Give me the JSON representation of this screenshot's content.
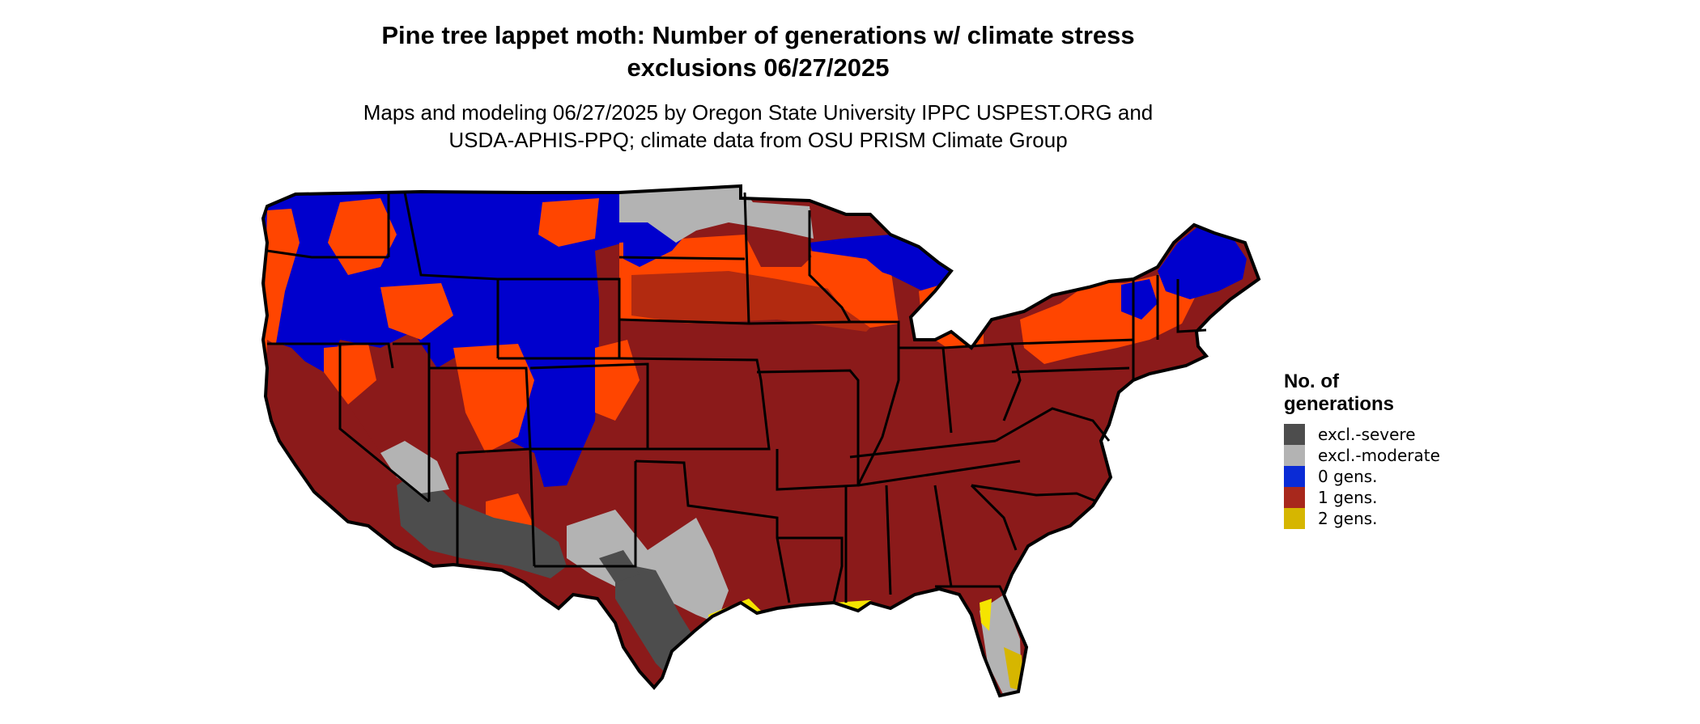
{
  "header": {
    "title_line1": "Pine tree lappet moth: Number of generations w/ climate stress",
    "title_line2": "exclusions 06/27/2025",
    "subtitle_line1": "Maps and modeling 06/27/2025 by Oregon State University IPPC USPEST.ORG and",
    "subtitle_line2": "USDA-APHIS-PPQ; climate data from OSU PRISM Climate Group"
  },
  "legend": {
    "title_line1": "No. of",
    "title_line2": "generations",
    "items": [
      {
        "label": "excl.-severe",
        "color": "#4d4d4d"
      },
      {
        "label": "excl.-moderate",
        "color": "#b3b3b3"
      },
      {
        "label": "0 gens.",
        "color": "#0a2bd6"
      },
      {
        "label": "1 gens.",
        "color": "#a8281c"
      },
      {
        "label": "2 gens.",
        "color": "#d6b600"
      }
    ]
  },
  "colors": {
    "excl_severe": "#4d4d4d",
    "excl_moderate": "#b3b3b3",
    "zero_gens": "#0000cd",
    "one_gen_dark": "#8b1a1a",
    "one_gen_orange": "#ff4500",
    "two_gens": "#f5e400",
    "borders": "#000000"
  }
}
